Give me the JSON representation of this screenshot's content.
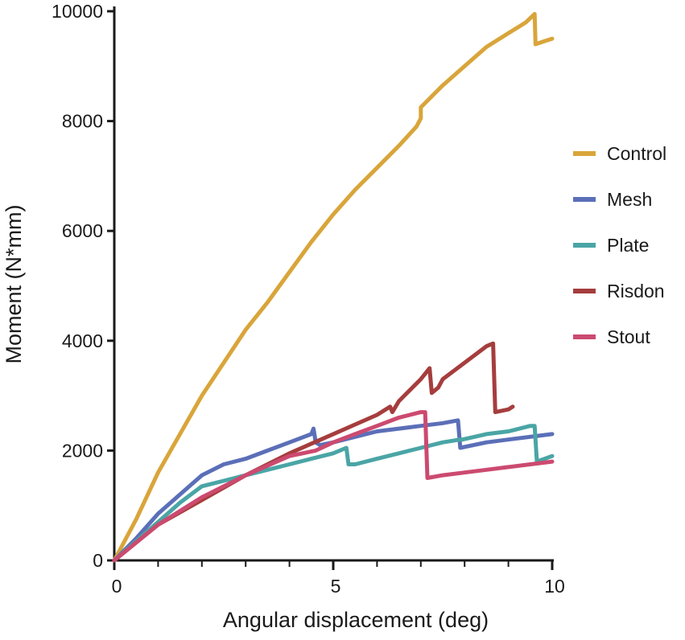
{
  "chart_data": {
    "type": "line",
    "title": "",
    "xlabel": "Angular displacement (deg)",
    "ylabel": "Moment (N*mm)",
    "xlim": [
      0,
      10
    ],
    "ylim": [
      0,
      10000
    ],
    "x_ticks": [
      0,
      5,
      10
    ],
    "x_tick_labels": [
      "0",
      "5",
      "10"
    ],
    "x_minor_ticks": [
      1,
      2,
      3,
      4,
      6,
      7,
      8,
      9
    ],
    "y_ticks": [
      0,
      2000,
      4000,
      6000,
      8000,
      10000
    ],
    "y_tick_labels": [
      "0",
      "2000",
      "4000",
      "6000",
      "8000",
      "10000"
    ],
    "grid": false,
    "legend_position": "right",
    "series": [
      {
        "name": "Control",
        "color": "#d9a53a",
        "points": [
          [
            0,
            0
          ],
          [
            0.5,
            750
          ],
          [
            1,
            1600
          ],
          [
            2,
            3000
          ],
          [
            3,
            4200
          ],
          [
            3.5,
            4700
          ],
          [
            4,
            5250
          ],
          [
            4.5,
            5800
          ],
          [
            5,
            6300
          ],
          [
            5.5,
            6750
          ],
          [
            6,
            7150
          ],
          [
            6.5,
            7550
          ],
          [
            6.9,
            7900
          ],
          [
            7,
            8050
          ],
          [
            7,
            8250
          ],
          [
            7.5,
            8650
          ],
          [
            8,
            9000
          ],
          [
            8.5,
            9350
          ],
          [
            9,
            9600
          ],
          [
            9.4,
            9800
          ],
          [
            9.6,
            9950
          ],
          [
            9.62,
            9400
          ],
          [
            9.8,
            9450
          ],
          [
            10,
            9500
          ]
        ]
      },
      {
        "name": "Mesh",
        "color": "#5b6fb8",
        "points": [
          [
            0,
            0
          ],
          [
            0.5,
            400
          ],
          [
            1,
            850
          ],
          [
            1.5,
            1200
          ],
          [
            2,
            1550
          ],
          [
            2.5,
            1750
          ],
          [
            3,
            1850
          ],
          [
            3.5,
            2000
          ],
          [
            4,
            2150
          ],
          [
            4.5,
            2300
          ],
          [
            4.55,
            2400
          ],
          [
            4.6,
            2150
          ],
          [
            4.7,
            2100
          ],
          [
            5,
            2150
          ],
          [
            5.5,
            2250
          ],
          [
            6,
            2350
          ],
          [
            6.5,
            2400
          ],
          [
            7,
            2450
          ],
          [
            7.5,
            2500
          ],
          [
            7.85,
            2550
          ],
          [
            7.9,
            2050
          ],
          [
            8.5,
            2150
          ],
          [
            9,
            2200
          ],
          [
            10,
            2300
          ]
        ]
      },
      {
        "name": "Plate",
        "color": "#4aa5a5",
        "points": [
          [
            0,
            0
          ],
          [
            0.5,
            350
          ],
          [
            1,
            700
          ],
          [
            1.5,
            1050
          ],
          [
            2,
            1350
          ],
          [
            2.5,
            1450
          ],
          [
            3,
            1550
          ],
          [
            3.5,
            1650
          ],
          [
            4,
            1750
          ],
          [
            4.5,
            1850
          ],
          [
            5,
            1950
          ],
          [
            5.3,
            2050
          ],
          [
            5.35,
            1750
          ],
          [
            5.5,
            1750
          ],
          [
            6,
            1850
          ],
          [
            6.5,
            1950
          ],
          [
            7,
            2050
          ],
          [
            7.5,
            2150
          ],
          [
            7.9,
            2200
          ],
          [
            7.95,
            2200
          ],
          [
            8.5,
            2300
          ],
          [
            9,
            2350
          ],
          [
            9.5,
            2450
          ],
          [
            9.6,
            2450
          ],
          [
            9.65,
            1800
          ],
          [
            10,
            1900
          ]
        ]
      },
      {
        "name": "Risdon",
        "color": "#a63d3d",
        "points": [
          [
            0,
            0
          ],
          [
            1,
            650
          ],
          [
            2,
            1100
          ],
          [
            3,
            1550
          ],
          [
            4,
            1950
          ],
          [
            5,
            2300
          ],
          [
            6,
            2650
          ],
          [
            6.3,
            2800
          ],
          [
            6.35,
            2700
          ],
          [
            6.5,
            2900
          ],
          [
            7,
            3300
          ],
          [
            7.2,
            3500
          ],
          [
            7.25,
            3050
          ],
          [
            7.4,
            3150
          ],
          [
            7.5,
            3300
          ],
          [
            8,
            3600
          ],
          [
            8.5,
            3900
          ],
          [
            8.65,
            3950
          ],
          [
            8.7,
            2700
          ],
          [
            9,
            2750
          ],
          [
            9.1,
            2800
          ]
        ]
      },
      {
        "name": "Stout",
        "color": "#cc4a70",
        "points": [
          [
            0,
            0
          ],
          [
            1,
            650
          ],
          [
            2,
            1150
          ],
          [
            3,
            1550
          ],
          [
            4,
            1900
          ],
          [
            4.6,
            2000
          ],
          [
            5,
            2150
          ],
          [
            5.5,
            2300
          ],
          [
            6,
            2450
          ],
          [
            6.5,
            2600
          ],
          [
            7,
            2700
          ],
          [
            7.1,
            2700
          ],
          [
            7.15,
            1500
          ],
          [
            7.5,
            1550
          ],
          [
            8,
            1600
          ],
          [
            8.5,
            1650
          ],
          [
            9,
            1700
          ],
          [
            9.5,
            1750
          ],
          [
            10,
            1800
          ]
        ]
      }
    ]
  }
}
